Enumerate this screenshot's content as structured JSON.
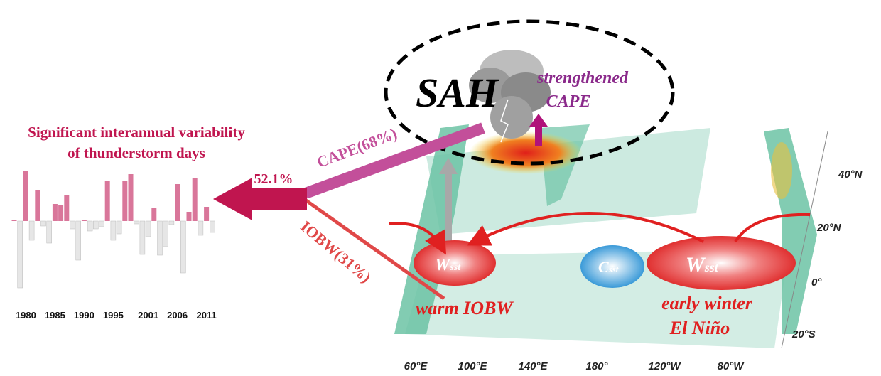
{
  "chart_title": [
    "Significant interannual variability",
    "of thunderstorm days"
  ],
  "bar_chart": {
    "type": "bar",
    "x": [
      1978,
      1979,
      1980,
      1981,
      1982,
      1983,
      1984,
      1985,
      1986,
      1987,
      1988,
      1989,
      1990,
      1991,
      1992,
      1993,
      1994,
      1995,
      1996,
      1997,
      1998,
      1999,
      2000,
      2001,
      2002,
      2003,
      2004,
      2005,
      2006,
      2007,
      2008,
      2009,
      2010,
      2011,
      2012
    ],
    "values": [
      2,
      -94,
      71,
      -27,
      43,
      -7,
      -31,
      24,
      23,
      36,
      -11,
      -55,
      2,
      -14,
      -11,
      -8,
      57,
      -27,
      -18,
      57,
      66,
      -4,
      -47,
      -22,
      18,
      -48,
      -36,
      -5,
      52,
      -73,
      13,
      60,
      -20,
      20,
      -16
    ],
    "xticks": [
      1980,
      1985,
      1990,
      1995,
      2001,
      2006,
      2011
    ],
    "positive_color": "#d9769a",
    "negative_color": "#e6e6e6"
  },
  "labels": {
    "sah": "SAH",
    "strengthened": "strengthened",
    "cape": "CAPE",
    "cape_share": "CAPE(68%)",
    "total_share": "52.1%",
    "iobw_share": "IOBW(31%)",
    "w_left": "W",
    "w_right": "W",
    "c_mid": "C",
    "sub": "sst",
    "warm_iobw": "warm IOBW",
    "early_winter": "early winter",
    "el_nino": "El Niño"
  },
  "map_axes": {
    "lon": [
      "60°E",
      "100°E",
      "140°E",
      "180°",
      "120°W",
      "80°W"
    ],
    "lat": [
      "40°N",
      "20°N",
      "0°",
      "20°S"
    ]
  }
}
